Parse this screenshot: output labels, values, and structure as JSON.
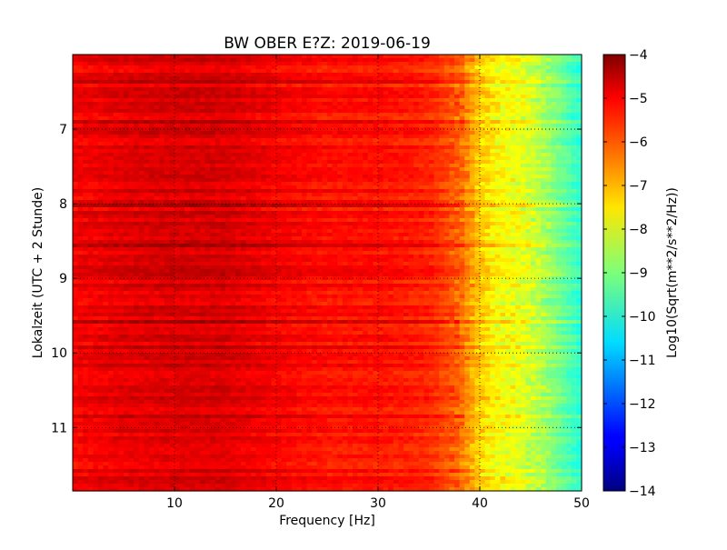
{
  "chart_data": {
    "type": "heatmap",
    "title": "BW OBER E?Z: 2019-06-19",
    "xlabel": "Frequency [Hz]",
    "ylabel": "Lokalzeit (UTC + 2 Stunde)",
    "xlim": [
      0,
      50
    ],
    "ylim": [
      11.85,
      6.0
    ],
    "x_ticks": [
      10,
      20,
      30,
      40,
      50
    ],
    "y_ticks": [
      7,
      8,
      9,
      10,
      11
    ],
    "grid": true,
    "colormap": "jet",
    "colorbar": {
      "label": "Log10(Sqrt(m**2/s**2/Hz))",
      "range": [
        -14,
        -4
      ],
      "ticks": [
        -4,
        -5,
        -6,
        -7,
        -8,
        -9,
        -10,
        -11,
        -12,
        -13,
        -14
      ]
    },
    "spectrum_profile": {
      "frequency_hz": [
        0,
        5,
        10,
        15,
        20,
        25,
        30,
        35,
        38,
        40,
        42,
        44,
        46,
        48,
        50
      ],
      "log10_amplitude": [
        -5.2,
        -5.0,
        -4.9,
        -4.9,
        -5.2,
        -5.4,
        -5.4,
        -5.6,
        -6.2,
        -7.3,
        -7.8,
        -8.0,
        -8.5,
        -9.2,
        -9.9
      ]
    }
  }
}
